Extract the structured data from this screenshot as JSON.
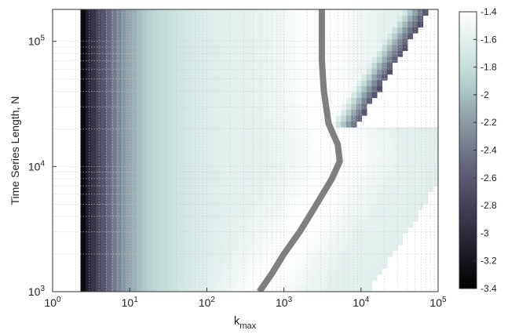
{
  "chart_data": {
    "type": "heatmap",
    "title": "",
    "xlabel_main": "k",
    "xlabel_sub": "max",
    "ylabel": "Time Series Length, N",
    "x_scale": "log",
    "y_scale": "log",
    "xlim": [
      1,
      100000
    ],
    "ylim": [
      1000,
      180000
    ],
    "x_ticks": [
      {
        "value": 1,
        "base": "10",
        "exp": "0"
      },
      {
        "value": 10,
        "base": "10",
        "exp": "1"
      },
      {
        "value": 100,
        "base": "10",
        "exp": "2"
      },
      {
        "value": 1000,
        "base": "10",
        "exp": "3"
      },
      {
        "value": 10000,
        "base": "10",
        "exp": "4"
      },
      {
        "value": 100000,
        "base": "10",
        "exp": "5"
      }
    ],
    "y_ticks": [
      {
        "value": 1000,
        "base": "10",
        "exp": "3"
      },
      {
        "value": 10000,
        "base": "10",
        "exp": "4"
      },
      {
        "value": 100000,
        "base": "10",
        "exp": "5"
      }
    ],
    "colorbar": {
      "min": -3.4,
      "max": -1.4,
      "ticks": [
        "-1.4",
        "-1.6",
        "-1.8",
        "-2",
        "-2.2",
        "-2.4",
        "-2.6",
        "-2.8",
        "-3",
        "-3.2",
        "-3.4"
      ],
      "colormap": [
        {
          "v": -3.4,
          "color": "#000000"
        },
        {
          "v": -3.0,
          "color": "#2e2b3d"
        },
        {
          "v": -2.6,
          "color": "#5a5870"
        },
        {
          "v": -2.2,
          "color": "#8a9aa4"
        },
        {
          "v": -1.9,
          "color": "#b7d3d0"
        },
        {
          "v": -1.7,
          "color": "#d4e8e5"
        },
        {
          "v": -1.4,
          "color": "#ffffff"
        }
      ]
    },
    "kmin": 2.3,
    "valid_region_edge": {
      "description_free": true,
      "points": [
        [
          8000,
          20000
        ],
        [
          80000,
          180000
        ]
      ]
    },
    "optimum_curve": [
      [
        480,
        1000
      ],
      [
        700,
        1400
      ],
      [
        1000,
        2000
      ],
      [
        1600,
        3000
      ],
      [
        2500,
        4700
      ],
      [
        4200,
        8000
      ],
      [
        5300,
        11000
      ],
      [
        5000,
        15000
      ],
      [
        3800,
        22000
      ],
      [
        3300,
        40000
      ],
      [
        3100,
        70000
      ],
      [
        3100,
        120000
      ],
      [
        3100,
        180000
      ]
    ],
    "grid": true
  }
}
